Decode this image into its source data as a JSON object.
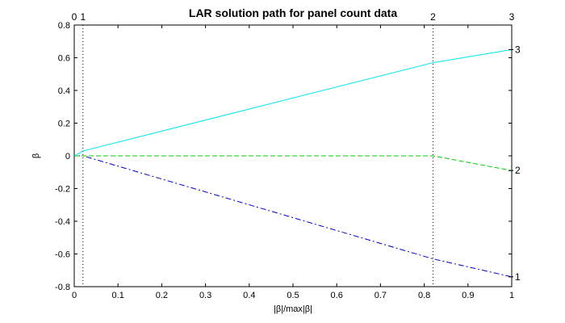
{
  "chart_data": {
    "type": "line",
    "title": "LAR solution path for panel count data",
    "xlabel": "|β|/max|β|",
    "ylabel": "β",
    "xlim": [
      0,
      1
    ],
    "ylim": [
      -0.8,
      0.8
    ],
    "xticks": [
      "0",
      "0.1",
      "0.2",
      "0.3",
      "0.4",
      "0.5",
      "0.6",
      "0.7",
      "0.8",
      "0.9",
      "1"
    ],
    "yticks": [
      "-0.8",
      "-0.6",
      "-0.4",
      "-0.2",
      "0",
      "0.2",
      "0.4",
      "0.6",
      "0.8"
    ],
    "grid": false,
    "steps": [
      {
        "x": 0,
        "label": "0"
      },
      {
        "x": 0.02,
        "label": "1"
      },
      {
        "x": 0.82,
        "label": "2"
      },
      {
        "x": 1,
        "label": "3"
      }
    ],
    "series": [
      {
        "name": "1",
        "color": "#0000cc",
        "style": "dashdot",
        "x": [
          0,
          0.02,
          0.82,
          1
        ],
        "y": [
          0,
          0,
          -0.63,
          -0.74
        ]
      },
      {
        "name": "2",
        "color": "#00cc00",
        "style": "dashed",
        "x": [
          0,
          0.02,
          0.82,
          1
        ],
        "y": [
          0,
          0,
          0,
          -0.09
        ]
      },
      {
        "name": "3",
        "color": "#00e5ee",
        "style": "solid",
        "x": [
          0,
          0.02,
          0.82,
          1
        ],
        "y": [
          0,
          0.03,
          0.57,
          0.65
        ]
      }
    ]
  }
}
